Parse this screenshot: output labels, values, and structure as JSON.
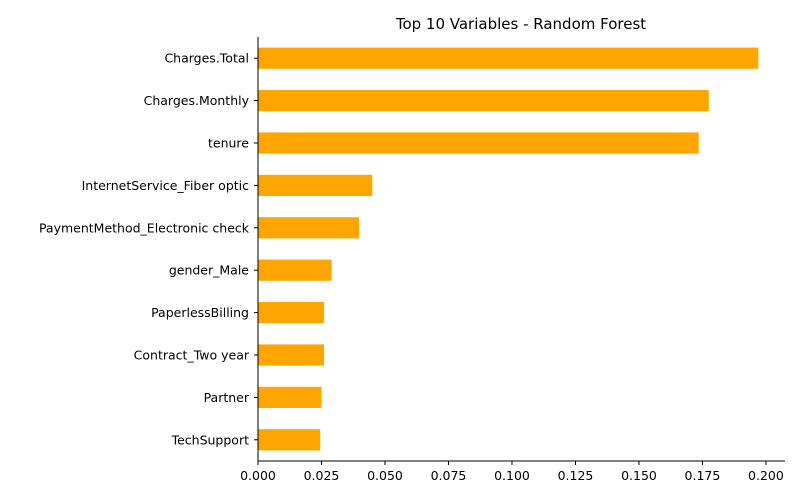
{
  "chart_data": {
    "type": "bar",
    "orientation": "horizontal",
    "title": "Top 10 Variables - Random Forest",
    "xlabel": "",
    "ylabel": "",
    "bar_color": "#FFA500",
    "xlim": [
      0,
      0.2075
    ],
    "x_ticks": [
      "0.000",
      "0.025",
      "0.050",
      "0.075",
      "0.100",
      "0.125",
      "0.150",
      "0.175",
      "0.200"
    ],
    "grid": false,
    "legend": "none",
    "categories": [
      "Charges.Total",
      "Charges.Monthly",
      "tenure",
      "InternetService_Fiber optic",
      "PaymentMethod_Electronic check",
      "gender_Male",
      "PaperlessBilling",
      "Contract_Two year",
      "Partner",
      "TechSupport"
    ],
    "values": [
      0.197,
      0.1775,
      0.1735,
      0.045,
      0.0398,
      0.029,
      0.026,
      0.026,
      0.025,
      0.0245
    ]
  }
}
